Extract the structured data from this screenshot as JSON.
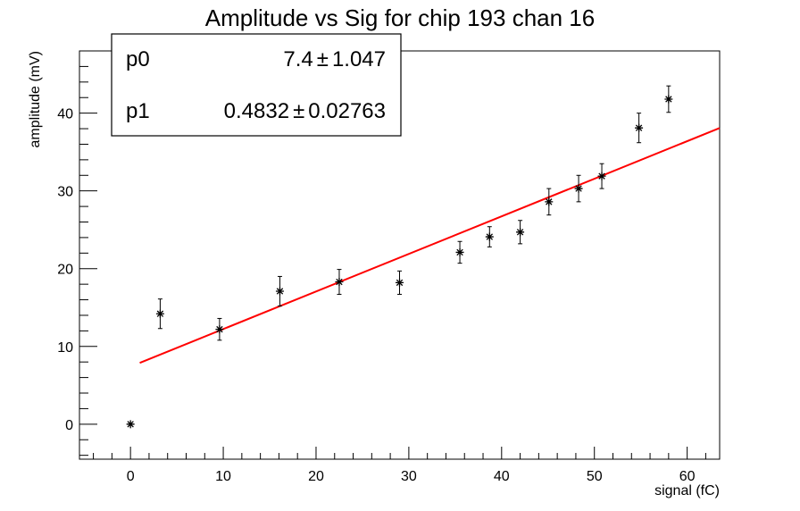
{
  "chart_data": {
    "type": "scatter",
    "title": "Amplitude vs Sig for chip 193 chan 16",
    "xlabel": "signal (fC)",
    "ylabel": "amplitude (mV)",
    "xlim": [
      -5.5,
      63.5
    ],
    "ylim": [
      -4.5,
      48
    ],
    "xticks": [
      0,
      10,
      20,
      30,
      40,
      50,
      60
    ],
    "yticks": [
      0,
      10,
      20,
      30,
      40
    ],
    "grid": false,
    "series": [
      {
        "marker": "star",
        "color": "#000000",
        "points": [
          {
            "x": 0,
            "y": 0,
            "err": 0
          },
          {
            "x": 3.2,
            "y": 14.2,
            "err": 1.9
          },
          {
            "x": 9.6,
            "y": 12.2,
            "err": 1.4
          },
          {
            "x": 16.1,
            "y": 17.1,
            "err": 1.9
          },
          {
            "x": 22.5,
            "y": 18.3,
            "err": 1.6
          },
          {
            "x": 29.0,
            "y": 18.2,
            "err": 1.5
          },
          {
            "x": 35.5,
            "y": 22.1,
            "err": 1.4
          },
          {
            "x": 38.7,
            "y": 24.1,
            "err": 1.3
          },
          {
            "x": 42.0,
            "y": 24.7,
            "err": 1.5
          },
          {
            "x": 45.1,
            "y": 28.6,
            "err": 1.7
          },
          {
            "x": 48.3,
            "y": 30.3,
            "err": 1.7
          },
          {
            "x": 50.8,
            "y": 31.9,
            "err": 1.6
          },
          {
            "x": 54.8,
            "y": 38.1,
            "err": 1.9
          },
          {
            "x": 58.0,
            "y": 41.8,
            "err": 1.7
          }
        ]
      }
    ],
    "fit": {
      "type": "linear",
      "color": "#ff0000",
      "p0": 7.4,
      "p1": 0.4832,
      "x_range": [
        1.0,
        63.5
      ]
    },
    "stats_box": {
      "placement": "top-left",
      "rows": [
        {
          "name": "p0",
          "value": "7.4",
          "error": "1.047"
        },
        {
          "name": "p1",
          "value": "0.4832",
          "error": "0.02763"
        }
      ],
      "pm_symbol": "±"
    }
  }
}
